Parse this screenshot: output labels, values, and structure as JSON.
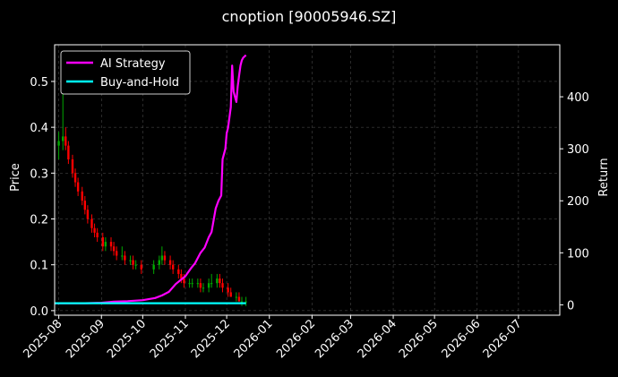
{
  "chart_data": {
    "type": "line",
    "title": "cnoption [90005946.SZ]",
    "ylabel": "Price",
    "y2label": "Return",
    "ylim": [
      -0.01,
      0.58
    ],
    "y2lim": [
      -20,
      500
    ],
    "yticks": [
      "0.0",
      "0.1",
      "0.2",
      "0.3",
      "0.4",
      "0.5"
    ],
    "y2ticks": [
      "0",
      "100",
      "200",
      "300",
      "400"
    ],
    "xlim": [
      "2025-07-29",
      "2026-07-31"
    ],
    "xticks": [
      "2025-08",
      "2025-09",
      "2025-10",
      "2025-11",
      "2025-12",
      "2026-01",
      "2026-02",
      "2026-03",
      "2026-04",
      "2026-05",
      "2026-06",
      "2026-07"
    ],
    "grid": true,
    "legend": "top-left",
    "colors": {
      "background": "#000000",
      "ai_strategy": "#ff00ff",
      "buy_and_hold": "#00ffff",
      "up_candle": "#00aa00",
      "down_candle": "#ff0000",
      "text": "#ffffff",
      "grid": "#555555"
    },
    "series": [
      {
        "name": "AI Strategy",
        "axis": "right",
        "x": [
          "2025-07-29",
          "2025-08-10",
          "2025-08-20",
          "2025-09-01",
          "2025-09-10",
          "2025-09-20",
          "2025-10-01",
          "2025-10-10",
          "2025-10-15",
          "2025-10-20",
          "2025-10-25",
          "2025-11-01",
          "2025-11-05",
          "2025-11-08",
          "2025-11-12",
          "2025-11-15",
          "2025-11-18",
          "2025-11-20",
          "2025-11-23",
          "2025-11-25",
          "2025-11-27",
          "2025-11-28",
          "2025-11-30",
          "2025-12-01",
          "2025-12-02",
          "2025-12-04",
          "2025-12-05",
          "2025-12-06",
          "2025-12-08",
          "2025-12-09",
          "2025-12-10",
          "2025-12-11",
          "2025-12-12",
          "2025-12-13",
          "2025-12-15"
        ],
        "values": [
          3,
          3,
          3,
          4,
          6,
          7,
          9,
          13,
          18,
          25,
          40,
          55,
          70,
          80,
          100,
          110,
          130,
          140,
          185,
          200,
          210,
          280,
          300,
          330,
          340,
          380,
          460,
          410,
          390,
          420,
          440,
          460,
          470,
          475,
          480
        ]
      },
      {
        "name": "Buy-and-Hold",
        "axis": "right",
        "x": [
          "2025-07-29",
          "2025-12-15"
        ],
        "values": [
          3,
          3
        ]
      }
    ],
    "candles": {
      "axis": "left",
      "x": [
        "2025-08-01",
        "2025-08-04",
        "2025-08-06",
        "2025-08-08",
        "2025-08-11",
        "2025-08-13",
        "2025-08-15",
        "2025-08-18",
        "2025-08-20",
        "2025-08-22",
        "2025-08-25",
        "2025-08-27",
        "2025-08-29",
        "2025-09-02",
        "2025-09-04",
        "2025-09-08",
        "2025-09-10",
        "2025-09-12",
        "2025-09-16",
        "2025-09-18",
        "2025-09-22",
        "2025-09-24",
        "2025-09-26",
        "2025-09-30",
        "2025-10-09",
        "2025-10-13",
        "2025-10-15",
        "2025-10-17",
        "2025-10-21",
        "2025-10-23",
        "2025-10-27",
        "2025-10-29",
        "2025-10-31",
        "2025-11-04",
        "2025-11-06",
        "2025-11-10",
        "2025-11-12",
        "2025-11-14",
        "2025-11-18",
        "2025-11-20",
        "2025-11-24",
        "2025-11-26",
        "2025-11-28",
        "2025-12-02",
        "2025-12-04",
        "2025-12-08",
        "2025-12-10",
        "2025-12-12",
        "2025-12-15"
      ],
      "open": [
        0.36,
        0.37,
        0.38,
        0.36,
        0.33,
        0.3,
        0.28,
        0.26,
        0.24,
        0.22,
        0.2,
        0.18,
        0.17,
        0.16,
        0.14,
        0.15,
        0.14,
        0.13,
        0.12,
        0.12,
        0.11,
        0.11,
        0.1,
        0.1,
        0.09,
        0.1,
        0.11,
        0.12,
        0.11,
        0.1,
        0.09,
        0.08,
        0.07,
        0.06,
        0.06,
        0.06,
        0.06,
        0.05,
        0.05,
        0.06,
        0.06,
        0.07,
        0.06,
        0.05,
        0.04,
        0.03,
        0.03,
        0.02,
        0.02
      ],
      "close": [
        0.37,
        0.38,
        0.36,
        0.33,
        0.3,
        0.28,
        0.26,
        0.24,
        0.22,
        0.2,
        0.18,
        0.17,
        0.16,
        0.14,
        0.15,
        0.14,
        0.13,
        0.12,
        0.12,
        0.11,
        0.11,
        0.1,
        0.1,
        0.09,
        0.1,
        0.11,
        0.12,
        0.11,
        0.1,
        0.09,
        0.08,
        0.07,
        0.06,
        0.06,
        0.06,
        0.06,
        0.05,
        0.05,
        0.06,
        0.06,
        0.07,
        0.06,
        0.05,
        0.04,
        0.03,
        0.03,
        0.02,
        0.02,
        0.02
      ],
      "high": [
        0.39,
        0.49,
        0.4,
        0.37,
        0.34,
        0.31,
        0.29,
        0.27,
        0.25,
        0.23,
        0.21,
        0.19,
        0.18,
        0.17,
        0.16,
        0.16,
        0.15,
        0.14,
        0.14,
        0.13,
        0.12,
        0.12,
        0.11,
        0.11,
        0.11,
        0.12,
        0.14,
        0.13,
        0.12,
        0.11,
        0.1,
        0.09,
        0.08,
        0.07,
        0.07,
        0.07,
        0.07,
        0.06,
        0.07,
        0.08,
        0.08,
        0.08,
        0.07,
        0.06,
        0.05,
        0.04,
        0.04,
        0.03,
        0.03
      ],
      "low": [
        0.33,
        0.35,
        0.35,
        0.32,
        0.29,
        0.27,
        0.25,
        0.23,
        0.21,
        0.19,
        0.17,
        0.16,
        0.15,
        0.13,
        0.13,
        0.13,
        0.12,
        0.11,
        0.11,
        0.1,
        0.1,
        0.09,
        0.09,
        0.08,
        0.08,
        0.09,
        0.1,
        0.1,
        0.09,
        0.08,
        0.07,
        0.06,
        0.05,
        0.05,
        0.05,
        0.05,
        0.04,
        0.04,
        0.04,
        0.05,
        0.05,
        0.05,
        0.04,
        0.03,
        0.03,
        0.02,
        0.02,
        0.01,
        0.01
      ]
    }
  }
}
